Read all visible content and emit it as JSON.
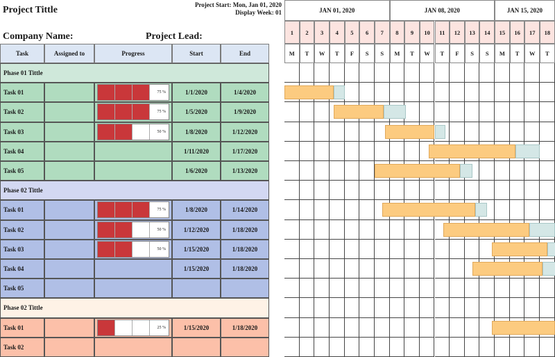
{
  "project": {
    "title": "Project Tittle",
    "start_text": "Project Start: Mon, Jan 01, 2020",
    "week_text": "Display Week: 01",
    "company_label": "Company Name:",
    "lead_label": "Project Lead:"
  },
  "columns": {
    "task": "Task",
    "assigned": "Assigned to",
    "progress": "Progress",
    "start": "Start",
    "end": "End"
  },
  "weeks": [
    "JAN 01, 2020",
    "JAN 08, 2020",
    "JAN 15, 2020"
  ],
  "days": [
    "1",
    "2",
    "3",
    "4",
    "5",
    "6",
    "7",
    "8",
    "9",
    "10",
    "11",
    "12",
    "13",
    "14",
    "15",
    "16",
    "17",
    "18"
  ],
  "dows": [
    "M",
    "T",
    "W",
    "T",
    "F",
    "S",
    "S",
    "M",
    "T",
    "W",
    "T",
    "F",
    "S",
    "S",
    "M",
    "T",
    "W",
    "T"
  ],
  "colors": {
    "phase1_header": "#cfe8da",
    "phase1_row": "#b0dcbf",
    "phase2_header": "#d3d8f2",
    "phase2_row": "#b0bfe6",
    "phase3_header": "#fef2e6",
    "phase3_row": "#fcc0a9",
    "progress_fill": "#c9373a",
    "bar_main": "#fccb80",
    "bar_extra": "#d4e7e6"
  },
  "phases": [
    {
      "title": "Phase 01 Tittle",
      "tasks": [
        {
          "name": "Task 01",
          "assigned": "",
          "progress": "75 %",
          "start": "1/1/2020",
          "end": "1/4/2020"
        },
        {
          "name": "Task 02",
          "assigned": "",
          "progress": "75 %",
          "start": "1/5/2020",
          "end": "1/9/2020"
        },
        {
          "name": "Task 03",
          "assigned": "",
          "progress": "50 %",
          "start": "1/8/2020",
          "end": "1/12/2020"
        },
        {
          "name": "Task 04",
          "assigned": "",
          "progress": "",
          "start": "1/11/2020",
          "end": "1/17/2020"
        },
        {
          "name": "Task 05",
          "assigned": "",
          "progress": "",
          "start": "1/6/2020",
          "end": "1/13/2020"
        }
      ]
    },
    {
      "title": "Phase 02 Tittle",
      "tasks": [
        {
          "name": "Task 01",
          "assigned": "",
          "progress": "75 %",
          "start": "1/8/2020",
          "end": "1/14/2020"
        },
        {
          "name": "Task 02",
          "assigned": "",
          "progress": "50 %",
          "start": "1/12/2020",
          "end": "1/18/2020"
        },
        {
          "name": "Task 03",
          "assigned": "",
          "progress": "50 %",
          "start": "1/15/2020",
          "end": "1/18/2020"
        },
        {
          "name": "Task 04",
          "assigned": "",
          "progress": "",
          "start": "1/15/2020",
          "end": "1/18/2020"
        },
        {
          "name": "Task 05",
          "assigned": "",
          "progress": "",
          "start": "",
          "end": ""
        }
      ]
    },
    {
      "title": "Phase 02 Tittle",
      "tasks": [
        {
          "name": "Task 01",
          "assigned": "",
          "progress": "25 %",
          "start": "1/15/2020",
          "end": "1/18/2020"
        },
        {
          "name": "Task 02",
          "assigned": "",
          "progress": "",
          "start": "",
          "end": ""
        }
      ]
    }
  ]
}
